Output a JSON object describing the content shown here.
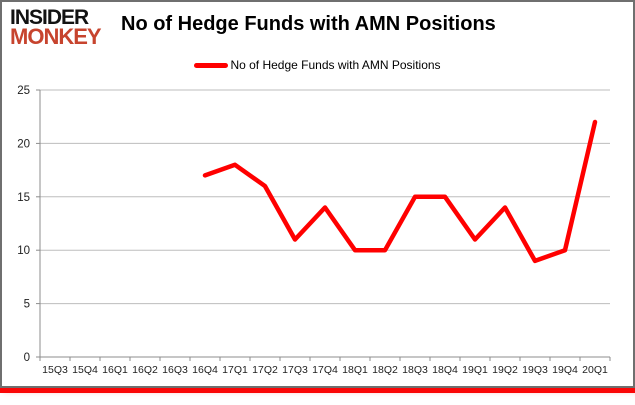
{
  "widget": {
    "logo": {
      "line1": "INSIDER",
      "line2": "MONKEY",
      "line1_color": "#121212",
      "line2_color": "#c7442e"
    },
    "title": "No of Hedge Funds with AMN Positions",
    "legend": {
      "label": "No of Hedge Funds with AMN Positions",
      "swatch_color": "#ff0000"
    }
  },
  "chart_data": {
    "type": "line",
    "title": "No of Hedge Funds with AMN Positions",
    "categories": [
      "15Q3",
      "15Q4",
      "16Q1",
      "16Q2",
      "16Q3",
      "16Q4",
      "17Q1",
      "17Q2",
      "17Q3",
      "17Q4",
      "18Q1",
      "18Q2",
      "18Q3",
      "18Q4",
      "19Q1",
      "19Q2",
      "19Q3",
      "19Q4",
      "20Q1"
    ],
    "series": [
      {
        "name": "No of Hedge Funds with AMN Positions",
        "color": "#ff0000",
        "values": [
          null,
          null,
          null,
          null,
          null,
          17,
          18,
          16,
          11,
          14,
          10,
          10,
          15,
          15,
          11,
          14,
          9,
          10,
          22
        ]
      }
    ],
    "xlabel": "",
    "ylabel": "",
    "ylim": [
      0,
      25
    ],
    "yticks": [
      0,
      5,
      10,
      15,
      20,
      25
    ],
    "grid": "horizontal",
    "legend_position": "top-center",
    "colors": {
      "gridline": "#bdbdbd",
      "axis": "#8c8c8c",
      "tick_label": "#1f1f1f"
    }
  }
}
